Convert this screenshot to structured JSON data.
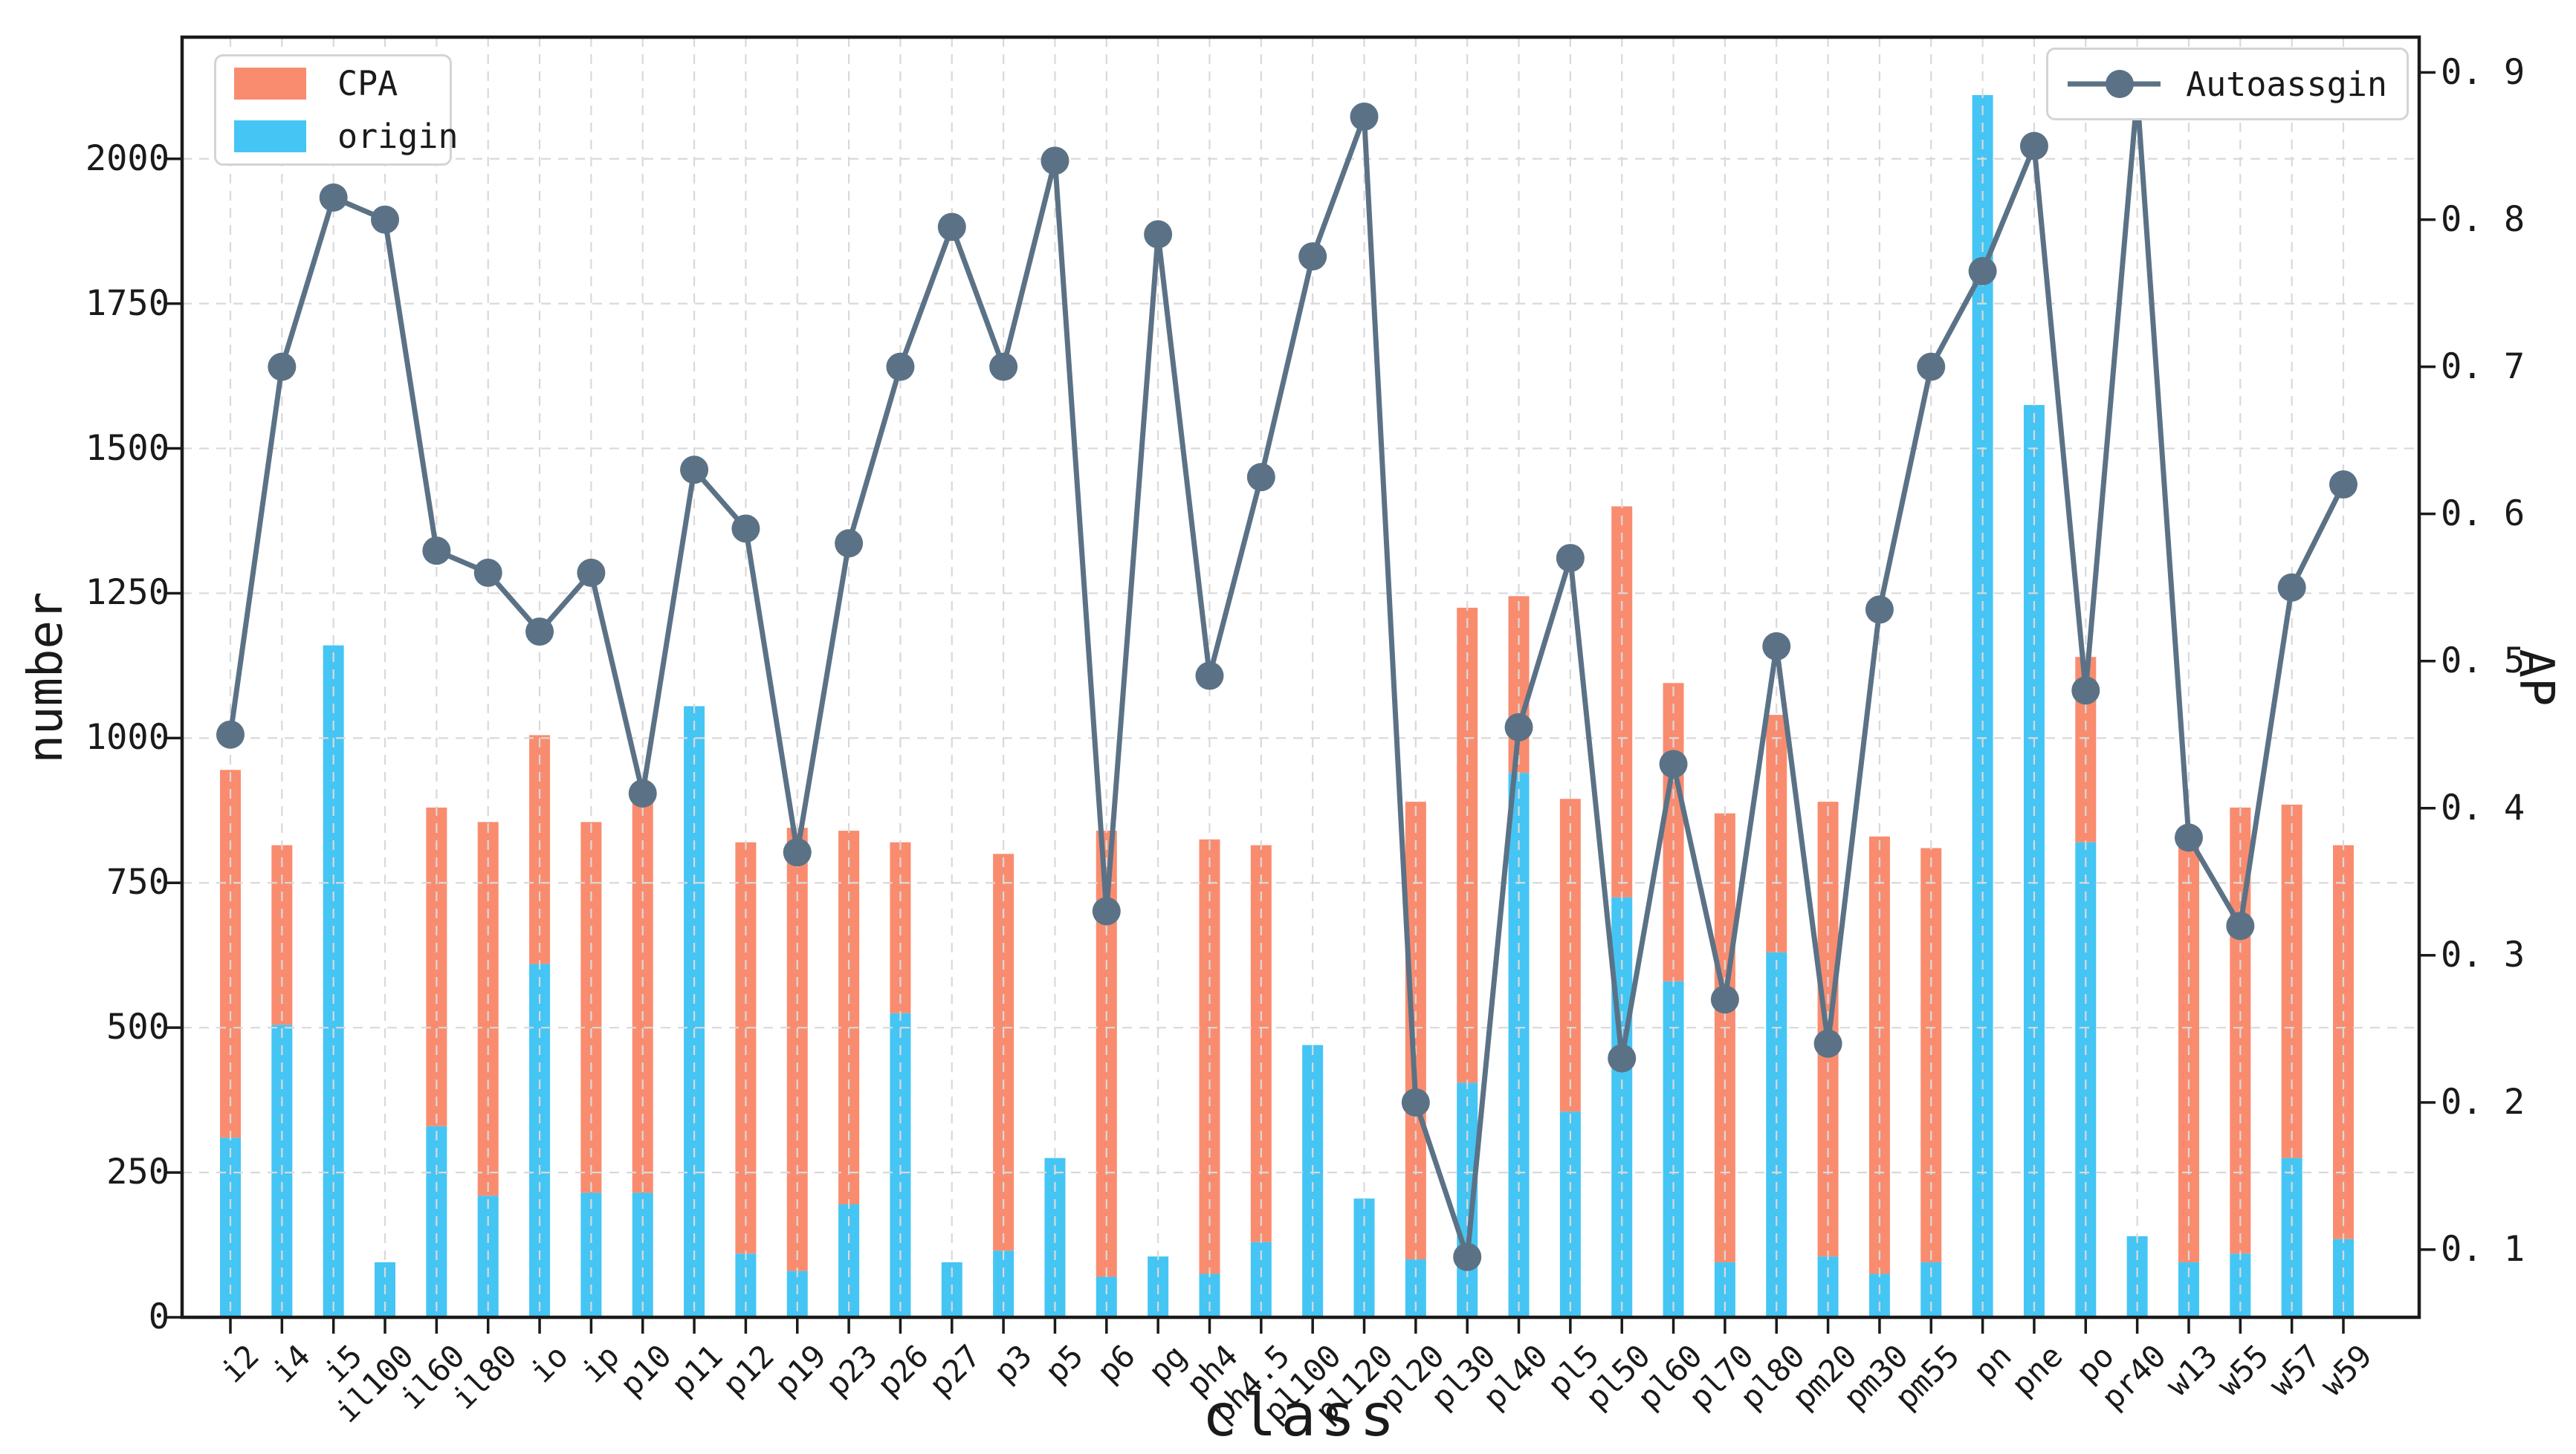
{
  "figure_bg": "#ffffff",
  "legend": {
    "cpa_label": "CPA",
    "origin_label": "origin",
    "line_label": "Autoassgin"
  },
  "axes": {
    "left_title": "number",
    "right_title": "AP",
    "x_title": "class",
    "left_tick_labels": [
      "0",
      "250",
      "500",
      "750",
      "1000",
      "1250",
      "1500",
      "1750",
      "2000"
    ],
    "left_tick_values": [
      0,
      250,
      500,
      750,
      1000,
      1250,
      1500,
      1750,
      2000
    ],
    "right_tick_labels": [
      "0. 1",
      "0. 2",
      "0. 3",
      "0. 4",
      "0. 5",
      "0. 6",
      "0. 7",
      "0. 8",
      "0. 9"
    ],
    "right_tick_values": [
      0.1,
      0.2,
      0.3,
      0.4,
      0.5,
      0.6,
      0.7,
      0.8,
      0.9
    ]
  },
  "colors": {
    "cpa": "#f98c6f",
    "origin": "#45c5f4",
    "line": "#5b7286",
    "grid": "#d9d9d9",
    "axis": "#1a1a1a"
  },
  "chart_data": {
    "type": "bar",
    "subtype": "stacked-bars-with-line",
    "title": "",
    "xlabel": "class",
    "ylabel_left": "number",
    "ylabel_right": "AP",
    "grid": true,
    "legend_position": [
      "upper-left",
      "upper-right"
    ],
    "left_axis_range": [
      0,
      2210
    ],
    "right_axis_range": [
      0.054,
      0.924
    ],
    "categories": [
      "i2",
      "i4",
      "i5",
      "il100",
      "il60",
      "il80",
      "io",
      "ip",
      "p10",
      "p11",
      "p12",
      "p19",
      "p23",
      "p26",
      "p27",
      "p3",
      "p5",
      "p6",
      "pg",
      "ph4",
      "ph4.5",
      "pl100",
      "pl120",
      "pl20",
      "pl30",
      "pl40",
      "pl5",
      "pl50",
      "pl60",
      "pl70",
      "pl80",
      "pm20",
      "pm30",
      "pm55",
      "pn",
      "pne",
      "po",
      "pr40",
      "w13",
      "w55",
      "w57",
      "w59"
    ],
    "series": [
      {
        "name": "origin",
        "type": "bar",
        "axis": "left",
        "stack": "base",
        "values": [
          310,
          505,
          1160,
          95,
          330,
          210,
          610,
          215,
          215,
          1055,
          110,
          80,
          195,
          525,
          95,
          115,
          275,
          70,
          105,
          75,
          130,
          470,
          205,
          100,
          405,
          940,
          355,
          725,
          580,
          95,
          630,
          105,
          75,
          95,
          2110,
          1575,
          820,
          140,
          95,
          110,
          275,
          135
        ]
      },
      {
        "name": "CPA",
        "type": "bar",
        "axis": "left",
        "stack": "on-origin",
        "values": [
          635,
          310,
          0,
          0,
          550,
          645,
          395,
          640,
          695,
          0,
          710,
          765,
          645,
          295,
          0,
          685,
          0,
          770,
          0,
          750,
          685,
          0,
          0,
          790,
          820,
          305,
          540,
          675,
          515,
          775,
          410,
          785,
          755,
          715,
          0,
          0,
          320,
          0,
          750,
          770,
          610,
          680
        ]
      },
      {
        "name": "Autoassgin",
        "type": "line",
        "axis": "right",
        "values": [
          0.45,
          0.7,
          0.815,
          0.8,
          0.575,
          0.56,
          0.52,
          0.56,
          0.41,
          0.63,
          0.59,
          0.37,
          0.58,
          0.7,
          0.795,
          0.7,
          0.84,
          0.33,
          0.79,
          0.49,
          0.625,
          0.775,
          0.87,
          0.2,
          0.095,
          0.455,
          0.57,
          0.23,
          0.43,
          0.27,
          0.51,
          0.24,
          0.535,
          0.7,
          0.765,
          0.85,
          0.48,
          0.885,
          0.38,
          0.32,
          0.55,
          0.62
        ]
      }
    ]
  }
}
